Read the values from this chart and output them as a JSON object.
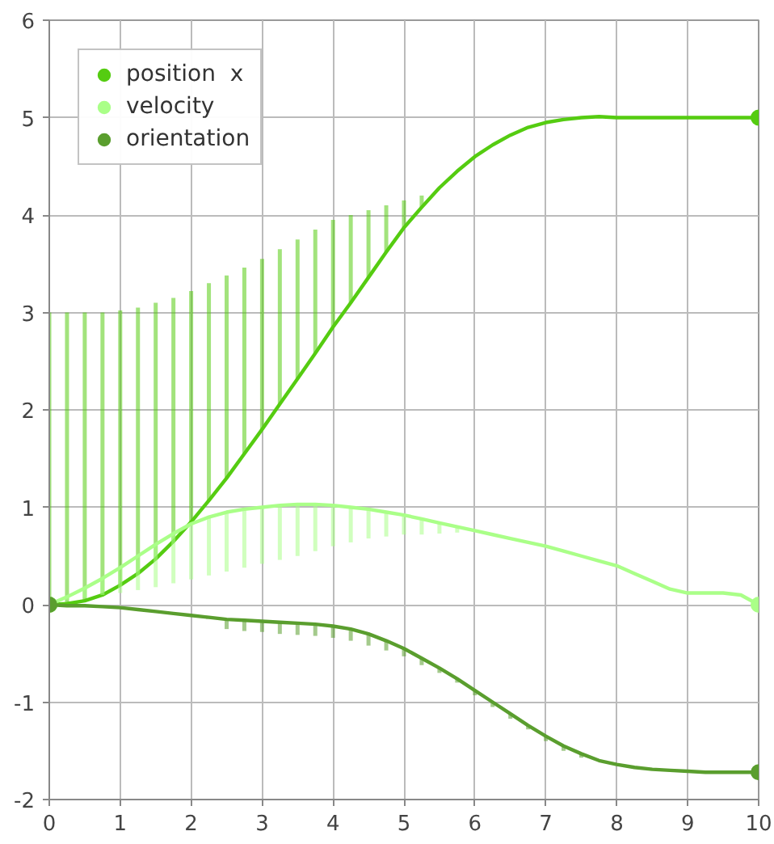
{
  "chart_data": {
    "type": "line",
    "x": [
      0,
      0.25,
      0.5,
      0.75,
      1,
      1.25,
      1.5,
      1.75,
      2,
      2.25,
      2.5,
      2.75,
      3,
      3.25,
      3.5,
      3.75,
      4,
      4.25,
      4.5,
      4.75,
      5,
      5.25,
      5.5,
      5.75,
      6,
      6.25,
      6.5,
      6.75,
      7,
      7.25,
      7.5,
      7.75,
      8,
      8.25,
      8.5,
      8.75,
      9,
      9.25,
      9.5,
      9.75,
      10
    ],
    "xlim": [
      0,
      10
    ],
    "ylim": [
      -2,
      6
    ],
    "xticks": [
      0,
      1,
      2,
      3,
      4,
      5,
      6,
      7,
      8,
      9,
      10
    ],
    "yticks": [
      -2,
      -1,
      0,
      1,
      2,
      3,
      4,
      5,
      6
    ],
    "grid": true,
    "legend": "top left",
    "line_style": "solid",
    "series": [
      {
        "name": "position  x",
        "color": "#55cc11",
        "values": [
          0,
          0.01,
          0.04,
          0.1,
          0.2,
          0.32,
          0.47,
          0.65,
          0.85,
          1.07,
          1.3,
          1.55,
          1.8,
          2.06,
          2.32,
          2.58,
          2.85,
          3.1,
          3.36,
          3.62,
          3.87,
          4.08,
          4.28,
          4.45,
          4.6,
          4.72,
          4.82,
          4.9,
          4.95,
          4.98,
          5.0,
          5.01,
          5.0,
          5.0,
          5.0,
          5.0,
          5.0,
          5.0,
          5.0,
          5.0,
          5.0
        ],
        "errors": [
          [
            0,
            3.0
          ],
          [
            0.01,
            3.0
          ],
          [
            0.04,
            3.0
          ],
          [
            0.1,
            3.0
          ],
          [
            0.2,
            3.02
          ],
          [
            0.32,
            3.05
          ],
          [
            0.47,
            3.1
          ],
          [
            0.65,
            3.15
          ],
          [
            0.85,
            3.22
          ],
          [
            1.07,
            3.3
          ],
          [
            1.3,
            3.38
          ],
          [
            1.55,
            3.46
          ],
          [
            1.8,
            3.55
          ],
          [
            2.06,
            3.65
          ],
          [
            2.32,
            3.75
          ],
          [
            2.58,
            3.85
          ],
          [
            2.85,
            3.95
          ],
          [
            3.1,
            4.0
          ],
          [
            3.36,
            4.05
          ],
          [
            3.62,
            4.1
          ],
          [
            3.87,
            4.15
          ],
          [
            4.08,
            4.2
          ],
          null,
          null,
          null,
          null,
          null,
          null,
          null,
          null,
          null,
          null,
          null,
          null,
          null,
          null,
          null,
          null,
          null,
          null,
          null
        ]
      },
      {
        "name": "velocity",
        "color": "#aaff88",
        "values": [
          0,
          0.08,
          0.17,
          0.27,
          0.38,
          0.5,
          0.62,
          0.73,
          0.83,
          0.9,
          0.95,
          0.98,
          1.0,
          1.02,
          1.03,
          1.03,
          1.02,
          1.0,
          0.98,
          0.95,
          0.92,
          0.88,
          0.84,
          0.8,
          0.76,
          0.72,
          0.68,
          0.64,
          0.6,
          0.55,
          0.5,
          0.45,
          0.4,
          0.32,
          0.24,
          0.16,
          0.12,
          0.12,
          0.12,
          0.1,
          0.0
        ],
        "errors": [
          null,
          [
            0.05,
            0.08
          ],
          [
            0.07,
            0.17
          ],
          [
            0.1,
            0.27
          ],
          [
            0.12,
            0.38
          ],
          [
            0.15,
            0.5
          ],
          [
            0.18,
            0.62
          ],
          [
            0.22,
            0.73
          ],
          [
            0.26,
            0.83
          ],
          [
            0.3,
            0.9
          ],
          [
            0.34,
            0.95
          ],
          [
            0.38,
            0.98
          ],
          [
            0.42,
            1.0
          ],
          [
            0.46,
            1.02
          ],
          [
            0.5,
            1.03
          ],
          [
            0.55,
            1.03
          ],
          [
            0.6,
            1.02
          ],
          [
            0.64,
            1.0
          ],
          [
            0.68,
            0.98
          ],
          [
            0.7,
            0.95
          ],
          [
            0.72,
            0.92
          ],
          [
            0.72,
            0.88
          ],
          [
            0.73,
            0.84
          ],
          [
            0.74,
            0.8
          ],
          null,
          null,
          null,
          null,
          null,
          null,
          null,
          null,
          null,
          null,
          null,
          null,
          null,
          null,
          null,
          null,
          null
        ]
      },
      {
        "name": "orientation",
        "color": "#5a9e2e",
        "values": [
          0,
          -0.01,
          -0.01,
          -0.02,
          -0.03,
          -0.05,
          -0.07,
          -0.09,
          -0.11,
          -0.13,
          -0.15,
          -0.16,
          -0.17,
          -0.18,
          -0.19,
          -0.2,
          -0.22,
          -0.25,
          -0.3,
          -0.37,
          -0.45,
          -0.55,
          -0.65,
          -0.76,
          -0.88,
          -1.0,
          -1.12,
          -1.24,
          -1.35,
          -1.45,
          -1.53,
          -1.6,
          -1.64,
          -1.67,
          -1.69,
          -1.7,
          -1.71,
          -1.72,
          -1.72,
          -1.72,
          -1.72
        ],
        "errors": [
          null,
          null,
          null,
          null,
          null,
          null,
          null,
          null,
          null,
          null,
          [
            -0.25,
            -0.15
          ],
          [
            -0.27,
            -0.16
          ],
          [
            -0.28,
            -0.17
          ],
          [
            -0.3,
            -0.18
          ],
          [
            -0.31,
            -0.19
          ],
          [
            -0.32,
            -0.2
          ],
          [
            -0.34,
            -0.22
          ],
          [
            -0.37,
            -0.25
          ],
          [
            -0.42,
            -0.3
          ],
          [
            -0.47,
            -0.37
          ],
          [
            -0.53,
            -0.45
          ],
          [
            -0.62,
            -0.55
          ],
          [
            -0.7,
            -0.65
          ],
          [
            -0.8,
            -0.76
          ],
          [
            -0.93,
            -0.88
          ],
          [
            -1.05,
            -1.0
          ],
          [
            -1.17,
            -1.12
          ],
          [
            -1.28,
            -1.24
          ],
          [
            -1.4,
            -1.35
          ],
          [
            -1.5,
            -1.45
          ],
          [
            -1.57,
            -1.53
          ],
          null,
          null,
          null,
          null,
          null,
          null,
          null,
          null,
          null,
          null
        ]
      }
    ]
  }
}
